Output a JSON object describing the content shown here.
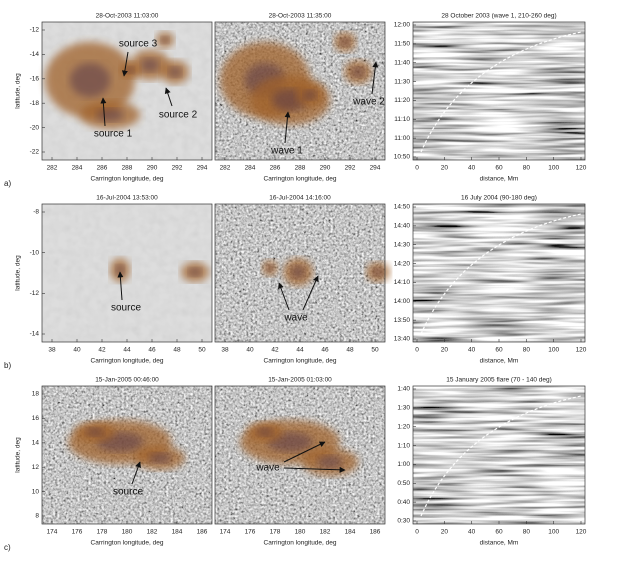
{
  "rows": [
    {
      "label": "a)",
      "panels": [
        {
          "title": "28-Oct-2003 11:03:00",
          "xticks": [
            "282",
            "284",
            "286",
            "288",
            "290",
            "292",
            "294"
          ],
          "yticks": [
            "-12",
            "-14",
            "-16",
            "-18",
            "-20",
            "-22"
          ],
          "xlabel": "Carrington longitude, deg",
          "ylabel": "latitude, deg",
          "annotations": [
            "source 3",
            "source 1",
            "source 2"
          ]
        },
        {
          "title": "28-Oct-2003 11:35:00",
          "xticks": [
            "282",
            "284",
            "286",
            "288",
            "290",
            "292",
            "294"
          ],
          "xlabel": "Carrington longitude, deg",
          "annotations": [
            "wave 1",
            "wave 2"
          ]
        },
        {
          "title": "28 October 2003 (wave 1, 210-260 deg)",
          "xticks": [
            "0",
            "20",
            "40",
            "60",
            "80",
            "100",
            "120"
          ],
          "yticks": [
            "12:00",
            "11:50",
            "11:40",
            "11:30",
            "11:20",
            "11:10",
            "11:00",
            "10:50"
          ],
          "xlabel": "distance, Mm"
        }
      ]
    },
    {
      "label": "b)",
      "panels": [
        {
          "title": "16-Jul-2004 13:53:00",
          "xticks": [
            "38",
            "40",
            "42",
            "44",
            "46",
            "48",
            "50"
          ],
          "yticks": [
            "-8",
            "-10",
            "-12",
            "-14"
          ],
          "xlabel": "Carrington longitude, deg",
          "ylabel": "latitude, deg",
          "annotations": [
            "source"
          ]
        },
        {
          "title": "16-Jul-2004 14:16:00",
          "xticks": [
            "38",
            "40",
            "42",
            "44",
            "46",
            "48",
            "50"
          ],
          "xlabel": "Carrington longitude, deg",
          "annotations": [
            "wave"
          ]
        },
        {
          "title": "16 July 2004 (90-180 deg)",
          "xticks": [
            "0",
            "20",
            "40",
            "60",
            "80",
            "100",
            "120"
          ],
          "yticks": [
            "14:50",
            "14:40",
            "14:30",
            "14:20",
            "14:10",
            "14:00",
            "13:50",
            "13:40"
          ],
          "xlabel": "distance, Mm"
        }
      ]
    },
    {
      "label": "c)",
      "panels": [
        {
          "title": "15-Jan-2005 00:46:00",
          "xticks": [
            "174",
            "176",
            "178",
            "180",
            "182",
            "184",
            "186"
          ],
          "yticks": [
            "18",
            "16",
            "14",
            "12",
            "10",
            "8"
          ],
          "xlabel": "Carrington longitude, deg",
          "ylabel": "latitude, deg",
          "annotations": [
            "source"
          ]
        },
        {
          "title": "15-Jan-2005 01:03:00",
          "xticks": [
            "174",
            "176",
            "178",
            "180",
            "182",
            "184",
            "186"
          ],
          "xlabel": "Carrington longitude, deg",
          "annotations": [
            "wave"
          ]
        },
        {
          "title": "15 January 2005 flare (70 - 140 deg)",
          "xticks": [
            "0",
            "20",
            "40",
            "60",
            "80",
            "100",
            "120"
          ],
          "yticks": [
            "1:40",
            "1:30",
            "1:20",
            "1:10",
            "1:00",
            "0:50",
            "0:40",
            "0:30"
          ],
          "xlabel": "distance, Mm"
        }
      ]
    }
  ]
}
